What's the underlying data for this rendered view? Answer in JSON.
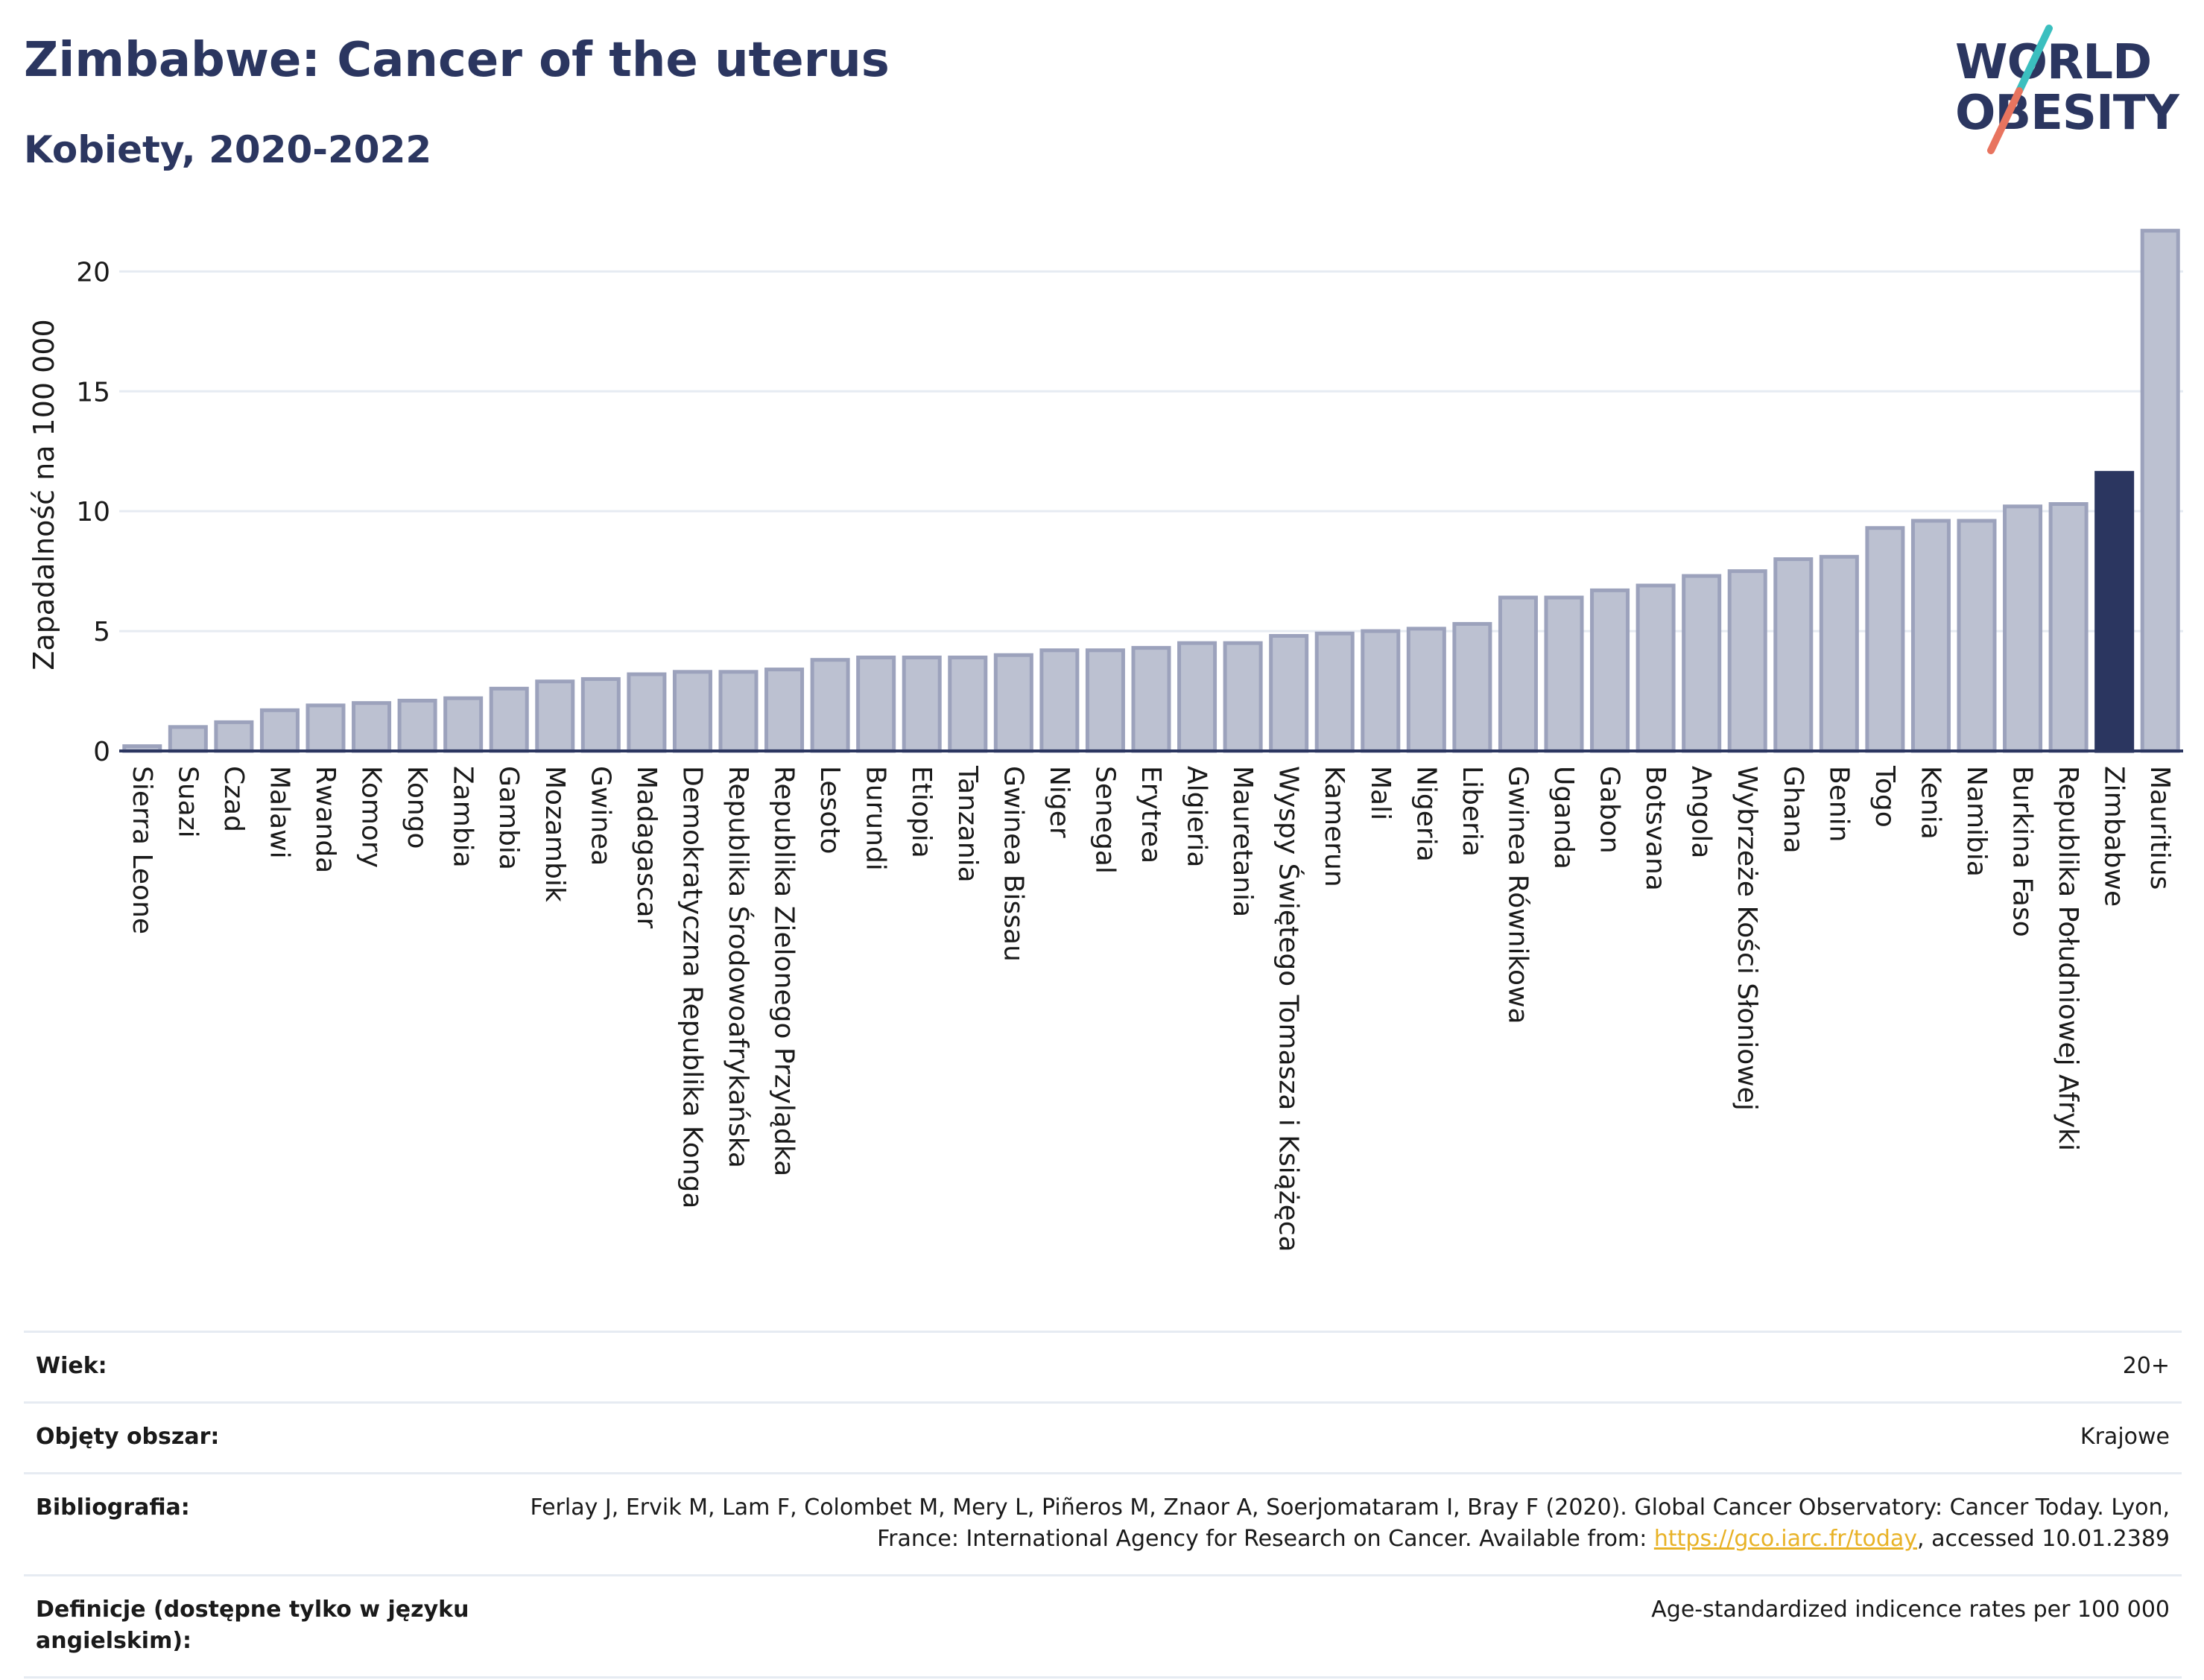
{
  "header": {
    "title": "Zimbabwe: Cancer of the uterus",
    "subtitle": "Kobiety, 2020-2022"
  },
  "logo": {
    "line1": "WORLD",
    "line2": "OBESITY",
    "colors": {
      "text": "#2b3660",
      "slash_top": "#3bbfbf",
      "slash_bottom": "#e8745f"
    }
  },
  "colors": {
    "bar": "#bcc1d1",
    "bar_border": "#9ca2bc",
    "highlight": "#2b3660",
    "grid": "#e6ebf2"
  },
  "chart_data": {
    "type": "bar",
    "ylabel": "Zapadalność na 100 000",
    "ylim": [
      0,
      22
    ],
    "yticks": [
      0,
      5,
      10,
      15,
      20
    ],
    "grid": true,
    "highlight": "Zimbabwe",
    "categories": [
      "Sierra Leone",
      "Suazi",
      "Czad",
      "Malawi",
      "Rwanda",
      "Komory",
      "Kongo",
      "Zambia",
      "Gambia",
      "Mozambik",
      "Gwinea",
      "Madagascar",
      "Demokratyczna Republika Konga",
      "Republika Środowoafrykańska",
      "Republika Zielonego Przylądka",
      "Lesoto",
      "Burundi",
      "Etiopia",
      "Tanzania",
      "Gwinea Bissau",
      "Niger",
      "Senegal",
      "Erytrea",
      "Algieria",
      "Mauretania",
      "Wyspy Świętego Tomasza i Książęca",
      "Kamerun",
      "Mali",
      "Nigeria",
      "Liberia",
      "Gwinea Równikowa",
      "Uganda",
      "Gabon",
      "Botsvana",
      "Angola",
      "Wybrzeże Kości Słoniowej",
      "Ghana",
      "Benin",
      "Togo",
      "Kenia",
      "Namibia",
      "Burkina Faso",
      "Republika Południowej Afryki",
      "Zimbabwe",
      "Mauritius"
    ],
    "values": [
      0.2,
      1.0,
      1.2,
      1.7,
      1.9,
      2.0,
      2.1,
      2.2,
      2.6,
      2.9,
      3.0,
      3.2,
      3.3,
      3.3,
      3.4,
      3.8,
      3.9,
      3.9,
      3.9,
      4.0,
      4.2,
      4.2,
      4.3,
      4.5,
      4.5,
      4.8,
      4.9,
      5.0,
      5.1,
      5.3,
      6.4,
      6.4,
      6.7,
      6.9,
      7.3,
      7.5,
      8.0,
      8.1,
      9.3,
      9.6,
      9.6,
      10.2,
      10.3,
      11.6,
      21.7
    ]
  },
  "meta": [
    {
      "label": "Wiek:",
      "value": "20+"
    },
    {
      "label": "Objęty obszar:",
      "value": "Krajowe"
    },
    {
      "label": "Bibliografia:",
      "value_pre": "Ferlay J, Ervik M, Lam F, Colombet M, Mery L, Piñeros M, Znaor A, Soerjomataram I, Bray F (2020). Global Cancer Observatory: Cancer Today. Lyon, France: International Agency for Research on Cancer. Available from: ",
      "link": "https://gco.iarc.fr/today",
      "value_post": ", accessed 10.01.2389"
    },
    {
      "label": "Definicje (dostępne tylko w języku angielskim):",
      "value": "Age-standardized indicence rates per 100 000"
    }
  ]
}
